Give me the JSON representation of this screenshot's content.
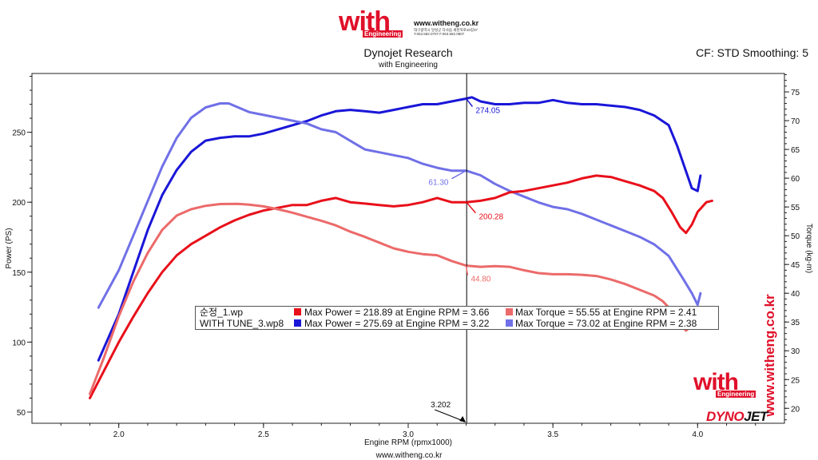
{
  "header": {
    "logo_text": "with",
    "logo_sub": "Engineering",
    "site": "www.witheng.co.kr",
    "info": "대구광역시 달성군 다사읍 세천북로10길37 T.053.582.0707 F.053.582.0807"
  },
  "title": "Dynojet Research",
  "subtitle": "with Engineering",
  "cf_label": "CF: STD Smoothing: 5",
  "footer_url": "www.witheng.co.kr",
  "watermark": {
    "vertical_site": "www.witheng.co.kr",
    "logo_text": "with",
    "logo_sub": "Engineering",
    "dynojet_a": "DYNO",
    "dynojet_b": "JET"
  },
  "legend": {
    "rows": [
      {
        "file": "순정_1.wp",
        "power_text": "Max Power = 218.89 at Engine RPM = 3.66",
        "torque_text": "Max Torque = 55.55 at Engine RPM = 2.41",
        "power_color": "#e8101a",
        "torque_color": "#ec6a6a"
      },
      {
        "file": "WITH TUNE_3.wp8",
        "power_text": "Max Power = 275.69 at Engine RPM = 3.22",
        "torque_text": "Max Torque = 73.02 at Engine RPM = 2.38",
        "power_color": "#1a16d8",
        "torque_color": "#7070e8"
      }
    ]
  },
  "chart_data": {
    "type": "line",
    "xlabel": "Engine RPM (rpmx1000)",
    "ylabel": "Power (PS)",
    "y2label": "Torque (kg-m)",
    "xlim": [
      1.7,
      4.3
    ],
    "ylim": [
      42,
      292
    ],
    "y2lim": [
      17.4,
      78.2
    ],
    "xticks": [
      "2.0",
      "2.5",
      "3.0",
      "3.5",
      "4.0"
    ],
    "yticks": [
      "50",
      "100",
      "150",
      "200",
      "250"
    ],
    "y2ticks": [
      "20",
      "25",
      "30",
      "35",
      "40",
      "45",
      "50",
      "55",
      "60",
      "65",
      "70",
      "75"
    ],
    "cursor": {
      "x": 3.202,
      "label": "3.202"
    },
    "annotations": [
      {
        "text": "274.05",
        "x": 3.2,
        "y": 274.05,
        "axis": "left",
        "color": "#1a16d8"
      },
      {
        "text": "61.30",
        "x": 3.2,
        "y": 61.3,
        "axis": "right",
        "color": "#7070e8"
      },
      {
        "text": "200.28",
        "x": 3.2,
        "y": 200.28,
        "axis": "left",
        "color": "#e8101a"
      },
      {
        "text": "44.80",
        "x": 3.2,
        "y": 44.8,
        "axis": "right",
        "color": "#ec6a6a"
      }
    ],
    "series": [
      {
        "name": "WITH TUNE_3.wp8 Power",
        "axis": "left",
        "color": "#1a16d8",
        "points": [
          [
            1.93,
            87
          ],
          [
            2.0,
            120
          ],
          [
            2.05,
            150
          ],
          [
            2.1,
            180
          ],
          [
            2.15,
            205
          ],
          [
            2.2,
            223
          ],
          [
            2.25,
            236
          ],
          [
            2.3,
            244
          ],
          [
            2.35,
            246
          ],
          [
            2.4,
            247
          ],
          [
            2.45,
            247
          ],
          [
            2.5,
            249
          ],
          [
            2.55,
            252
          ],
          [
            2.6,
            255
          ],
          [
            2.65,
            258
          ],
          [
            2.7,
            262
          ],
          [
            2.75,
            265
          ],
          [
            2.8,
            266
          ],
          [
            2.85,
            265
          ],
          [
            2.9,
            264
          ],
          [
            2.95,
            266
          ],
          [
            3.0,
            268
          ],
          [
            3.05,
            270
          ],
          [
            3.1,
            270
          ],
          [
            3.15,
            272
          ],
          [
            3.2,
            274
          ],
          [
            3.22,
            275
          ],
          [
            3.25,
            272
          ],
          [
            3.3,
            270
          ],
          [
            3.35,
            270
          ],
          [
            3.4,
            271
          ],
          [
            3.45,
            271
          ],
          [
            3.5,
            273
          ],
          [
            3.55,
            271
          ],
          [
            3.6,
            270
          ],
          [
            3.65,
            270
          ],
          [
            3.7,
            269
          ],
          [
            3.75,
            268
          ],
          [
            3.8,
            266
          ],
          [
            3.85,
            262
          ],
          [
            3.9,
            255
          ],
          [
            3.93,
            240
          ],
          [
            3.96,
            222
          ],
          [
            3.98,
            210
          ],
          [
            4.0,
            208
          ],
          [
            4.01,
            219
          ]
        ]
      },
      {
        "name": "WITH TUNE_3.wp8 Torque",
        "axis": "right",
        "color": "#7070e8",
        "points": [
          [
            1.93,
            37.5
          ],
          [
            2.0,
            44
          ],
          [
            2.05,
            50
          ],
          [
            2.1,
            56
          ],
          [
            2.15,
            62
          ],
          [
            2.2,
            67
          ],
          [
            2.25,
            70.5
          ],
          [
            2.3,
            72.3
          ],
          [
            2.35,
            73
          ],
          [
            2.38,
            73.0
          ],
          [
            2.45,
            71.5
          ],
          [
            2.5,
            71
          ],
          [
            2.55,
            70.5
          ],
          [
            2.6,
            70
          ],
          [
            2.65,
            69.5
          ],
          [
            2.7,
            68.5
          ],
          [
            2.75,
            68
          ],
          [
            2.8,
            66.5
          ],
          [
            2.85,
            65
          ],
          [
            2.9,
            64.5
          ],
          [
            2.95,
            64
          ],
          [
            3.0,
            63.5
          ],
          [
            3.05,
            62.5
          ],
          [
            3.1,
            61.8
          ],
          [
            3.15,
            61.3
          ],
          [
            3.2,
            61.3
          ],
          [
            3.25,
            60.5
          ],
          [
            3.3,
            59
          ],
          [
            3.35,
            57.8
          ],
          [
            3.4,
            56.8
          ],
          [
            3.45,
            55.8
          ],
          [
            3.5,
            55
          ],
          [
            3.55,
            54.6
          ],
          [
            3.6,
            53.8
          ],
          [
            3.65,
            52.8
          ],
          [
            3.7,
            51.8
          ],
          [
            3.75,
            50.8
          ],
          [
            3.8,
            49.8
          ],
          [
            3.85,
            48.5
          ],
          [
            3.9,
            46.5
          ],
          [
            3.95,
            42.5
          ],
          [
            3.98,
            40
          ],
          [
            4.0,
            38
          ],
          [
            4.01,
            40
          ]
        ]
      },
      {
        "name": "순정_1.wp Power",
        "axis": "left",
        "color": "#e8101a",
        "points": [
          [
            1.9,
            60
          ],
          [
            1.95,
            80
          ],
          [
            2.0,
            100
          ],
          [
            2.05,
            118
          ],
          [
            2.1,
            135
          ],
          [
            2.15,
            150
          ],
          [
            2.2,
            162
          ],
          [
            2.25,
            170
          ],
          [
            2.3,
            176
          ],
          [
            2.35,
            182
          ],
          [
            2.4,
            187
          ],
          [
            2.45,
            191
          ],
          [
            2.5,
            194
          ],
          [
            2.55,
            196
          ],
          [
            2.6,
            198
          ],
          [
            2.65,
            198
          ],
          [
            2.7,
            201
          ],
          [
            2.75,
            203
          ],
          [
            2.8,
            200
          ],
          [
            2.85,
            199
          ],
          [
            2.9,
            198
          ],
          [
            2.95,
            197
          ],
          [
            3.0,
            198
          ],
          [
            3.05,
            200
          ],
          [
            3.1,
            203
          ],
          [
            3.15,
            200
          ],
          [
            3.2,
            200
          ],
          [
            3.25,
            201
          ],
          [
            3.3,
            203
          ],
          [
            3.35,
            207
          ],
          [
            3.4,
            208
          ],
          [
            3.45,
            210
          ],
          [
            3.5,
            212
          ],
          [
            3.55,
            214
          ],
          [
            3.6,
            217
          ],
          [
            3.65,
            219
          ],
          [
            3.7,
            218
          ],
          [
            3.75,
            215
          ],
          [
            3.8,
            212
          ],
          [
            3.85,
            208
          ],
          [
            3.88,
            203
          ],
          [
            3.91,
            193
          ],
          [
            3.94,
            182
          ],
          [
            3.96,
            178
          ],
          [
            3.98,
            184
          ],
          [
            4.0,
            193
          ],
          [
            4.03,
            200
          ],
          [
            4.05,
            201
          ]
        ]
      },
      {
        "name": "순정_1.wp Torque",
        "axis": "right",
        "color": "#ec6a6a",
        "points": [
          [
            1.9,
            22.5
          ],
          [
            1.95,
            29
          ],
          [
            2.0,
            36
          ],
          [
            2.05,
            42
          ],
          [
            2.1,
            47
          ],
          [
            2.15,
            51
          ],
          [
            2.2,
            53.5
          ],
          [
            2.25,
            54.6
          ],
          [
            2.3,
            55.2
          ],
          [
            2.35,
            55.5
          ],
          [
            2.41,
            55.55
          ],
          [
            2.45,
            55.4
          ],
          [
            2.5,
            55.1
          ],
          [
            2.55,
            54.6
          ],
          [
            2.6,
            54
          ],
          [
            2.65,
            53.3
          ],
          [
            2.7,
            52.6
          ],
          [
            2.75,
            51.8
          ],
          [
            2.8,
            50.7
          ],
          [
            2.85,
            49.8
          ],
          [
            2.9,
            48.8
          ],
          [
            2.95,
            47.8
          ],
          [
            3.0,
            47.2
          ],
          [
            3.05,
            46.8
          ],
          [
            3.1,
            46.6
          ],
          [
            3.15,
            45.6
          ],
          [
            3.2,
            44.8
          ],
          [
            3.25,
            44.6
          ],
          [
            3.3,
            44.7
          ],
          [
            3.35,
            44.6
          ],
          [
            3.4,
            44.0
          ],
          [
            3.45,
            43.5
          ],
          [
            3.5,
            43.3
          ],
          [
            3.55,
            43.3
          ],
          [
            3.6,
            43.2
          ],
          [
            3.65,
            43.0
          ],
          [
            3.7,
            42.4
          ],
          [
            3.75,
            41.6
          ],
          [
            3.8,
            40.6
          ],
          [
            3.85,
            39.6
          ],
          [
            3.88,
            38.6
          ],
          [
            3.91,
            37.0
          ],
          [
            3.94,
            34.6
          ],
          [
            3.96,
            33.5
          ],
          [
            3.99,
            34.8
          ],
          [
            4.02,
            36.5
          ],
          [
            4.05,
            37.0
          ]
        ]
      }
    ]
  }
}
